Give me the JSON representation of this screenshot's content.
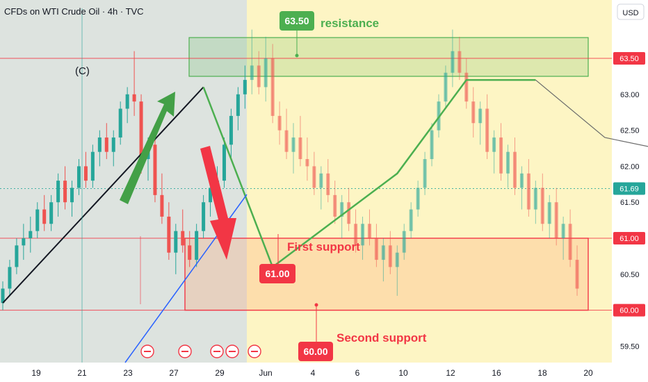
{
  "header": {
    "title": "CFDs on WTI Crude Oil · 4h · TVC"
  },
  "currency_button": {
    "label": "USD"
  },
  "annotations": {
    "resistance_label": "resistance",
    "first_support_label": "First support",
    "second_support_label": "Second support",
    "wave_label": "(C)",
    "resistance_badge": "63.50",
    "first_support_badge": "61.00",
    "second_support_badge": "60.00"
  },
  "colors": {
    "up": "#26a69a",
    "down": "#ef5350",
    "resistance": "#4caf50",
    "support": "#f23645",
    "current": "#26a69a",
    "trend_line": "#2962ff"
  },
  "chart_data": {
    "type": "candlestick",
    "title": "CFDs on WTI Crude Oil · 4h · TVC",
    "currency": "USD",
    "y_ticks": [
      59.5,
      60.0,
      60.5,
      61.0,
      61.5,
      62.0,
      62.5,
      63.0,
      63.5
    ],
    "x_ticks": [
      "19",
      "21",
      "23",
      "27",
      "29",
      "Jun",
      "4",
      "6",
      "10",
      "12",
      "16",
      "18",
      "20"
    ],
    "levels": [
      {
        "name": "resistance",
        "value": 63.5
      },
      {
        "name": "current",
        "value": 61.69
      },
      {
        "name": "First support",
        "value": 61.0
      },
      {
        "name": "Second support",
        "value": 60.0
      }
    ],
    "resistance_zone": [
      63.25,
      63.75
    ],
    "support_zone": [
      60.0,
      61.0
    ],
    "wave_path_c": [
      [
        0,
        60.1
      ],
      [
        29,
        63.1
      ]
    ],
    "wave_path_abc": [
      [
        29,
        63.1
      ],
      [
        39,
        60.6
      ],
      [
        57,
        61.9
      ],
      [
        67,
        63.2
      ],
      [
        77,
        63.2
      ]
    ],
    "trend_path": [
      [
        77,
        63.2
      ],
      [
        87,
        62.4
      ],
      [
        107,
        62.0
      ],
      [
        127,
        61.0
      ],
      [
        137,
        60.8
      ],
      [
        147,
        63.4
      ],
      [
        177,
        61.3
      ],
      [
        187,
        60.7
      ]
    ],
    "candles": {
      "description": "Approximate 4h OHLC sequence, index-based",
      "ohlc": [
        [
          60.1,
          60.4,
          60.0,
          60.3
        ],
        [
          60.3,
          60.7,
          60.2,
          60.6
        ],
        [
          60.6,
          61.0,
          60.5,
          60.9
        ],
        [
          60.9,
          61.2,
          60.7,
          61.0
        ],
        [
          61.0,
          61.3,
          60.8,
          61.1
        ],
        [
          61.1,
          61.5,
          61.0,
          61.4
        ],
        [
          61.4,
          61.6,
          61.1,
          61.2
        ],
        [
          61.2,
          61.6,
          61.1,
          61.5
        ],
        [
          61.5,
          61.9,
          61.3,
          61.8
        ],
        [
          61.8,
          62.0,
          61.4,
          61.5
        ],
        [
          61.5,
          61.8,
          61.3,
          61.7
        ],
        [
          61.7,
          62.1,
          61.6,
          62.0
        ],
        [
          62.0,
          62.2,
          61.7,
          61.8
        ],
        [
          61.8,
          62.3,
          61.7,
          62.2
        ],
        [
          62.2,
          62.5,
          62.0,
          62.4
        ],
        [
          62.4,
          62.6,
          62.1,
          62.2
        ],
        [
          62.2,
          62.5,
          62.0,
          62.4
        ],
        [
          62.4,
          62.9,
          62.3,
          62.8
        ],
        [
          62.8,
          63.1,
          62.6,
          63.0
        ],
        [
          63.0,
          63.6,
          62.7,
          62.9
        ],
        [
          62.9,
          63.0,
          61.9,
          62.1
        ],
        [
          62.1,
          62.4,
          61.8,
          62.3
        ],
        [
          62.3,
          62.5,
          61.5,
          61.6
        ],
        [
          61.6,
          61.9,
          61.2,
          61.3
        ],
        [
          61.3,
          61.5,
          60.7,
          60.8
        ],
        [
          60.8,
          61.2,
          60.5,
          61.1
        ],
        [
          61.1,
          61.4,
          60.8,
          60.9
        ],
        [
          60.9,
          61.1,
          60.6,
          60.7
        ],
        [
          60.7,
          61.2,
          60.6,
          61.1
        ],
        [
          61.1,
          61.6,
          61.0,
          61.5
        ],
        [
          61.5,
          61.8,
          61.3,
          61.7
        ],
        [
          61.7,
          62.0,
          61.5,
          61.8
        ],
        [
          61.8,
          62.4,
          61.7,
          62.3
        ],
        [
          62.3,
          62.8,
          62.1,
          62.7
        ],
        [
          62.7,
          63.1,
          62.5,
          63.0
        ],
        [
          63.0,
          63.4,
          62.8,
          63.2
        ],
        [
          63.2,
          63.9,
          63.0,
          63.4
        ],
        [
          63.4,
          63.6,
          63.0,
          63.1
        ],
        [
          63.1,
          63.8,
          62.9,
          63.5
        ],
        [
          63.5,
          63.7,
          62.6,
          62.7
        ],
        [
          62.7,
          62.9,
          62.3,
          62.5
        ],
        [
          62.5,
          62.8,
          62.1,
          62.2
        ],
        [
          62.2,
          62.6,
          61.9,
          62.4
        ],
        [
          62.4,
          62.7,
          62.0,
          62.1
        ],
        [
          62.1,
          62.4,
          61.8,
          62.0
        ],
        [
          62.0,
          62.2,
          61.6,
          61.7
        ],
        [
          61.7,
          62.0,
          61.4,
          61.9
        ],
        [
          61.9,
          62.1,
          61.5,
          61.6
        ],
        [
          61.6,
          61.8,
          61.2,
          61.3
        ],
        [
          61.3,
          61.6,
          61.0,
          61.5
        ],
        [
          61.5,
          61.7,
          61.1,
          61.2
        ],
        [
          61.2,
          61.4,
          60.8,
          60.9
        ],
        [
          60.9,
          61.3,
          60.7,
          61.2
        ],
        [
          61.2,
          61.4,
          60.9,
          61.0
        ],
        [
          61.0,
          61.2,
          60.6,
          60.7
        ],
        [
          60.7,
          61.0,
          60.4,
          60.9
        ],
        [
          60.9,
          61.1,
          60.5,
          60.6
        ],
        [
          60.6,
          60.9,
          60.2,
          60.8
        ],
        [
          60.8,
          61.2,
          60.7,
          61.1
        ],
        [
          61.1,
          61.5,
          61.0,
          61.4
        ],
        [
          61.4,
          61.8,
          61.3,
          61.7
        ],
        [
          61.7,
          62.2,
          61.6,
          62.1
        ],
        [
          62.1,
          62.6,
          62.0,
          62.5
        ],
        [
          62.5,
          63.0,
          62.4,
          62.9
        ],
        [
          62.9,
          63.4,
          62.8,
          63.3
        ],
        [
          63.3,
          63.9,
          63.1,
          63.6
        ],
        [
          63.6,
          63.8,
          63.2,
          63.3
        ],
        [
          63.3,
          63.5,
          62.8,
          62.9
        ],
        [
          62.9,
          63.1,
          62.4,
          62.6
        ],
        [
          62.6,
          62.9,
          62.3,
          62.8
        ],
        [
          62.8,
          63.0,
          62.1,
          62.2
        ],
        [
          62.2,
          62.5,
          61.9,
          62.4
        ],
        [
          62.4,
          62.6,
          61.8,
          61.9
        ],
        [
          61.9,
          62.3,
          61.7,
          62.2
        ],
        [
          62.2,
          62.4,
          61.6,
          61.7
        ],
        [
          61.7,
          62.0,
          61.4,
          61.9
        ],
        [
          61.9,
          62.1,
          61.3,
          61.4
        ],
        [
          61.4,
          61.8,
          61.2,
          61.7
        ],
        [
          61.7,
          61.9,
          61.1,
          61.2
        ],
        [
          61.2,
          61.6,
          61.0,
          61.5
        ],
        [
          61.5,
          61.7,
          60.9,
          61.0
        ],
        [
          61.0,
          61.3,
          60.7,
          61.2
        ],
        [
          61.2,
          61.4,
          60.6,
          60.7
        ],
        [
          60.7,
          60.9,
          60.2,
          60.3
        ]
      ]
    }
  }
}
